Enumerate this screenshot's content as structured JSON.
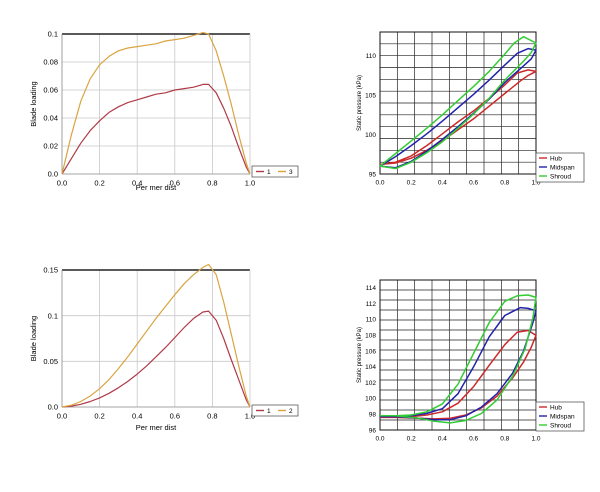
{
  "chart_data": [
    {
      "type": "line",
      "xlabel": "Per mer dist",
      "ylabel": "Blade loading",
      "xlim": [
        0,
        1.0
      ],
      "ylim": [
        0,
        0.1
      ],
      "xticks": [
        "0.0",
        "0.2",
        "0.4",
        "0.6",
        "0.8",
        "1.0"
      ],
      "yticks": [
        "0.0",
        "0.02",
        "0.04",
        "0.06",
        "0.08",
        "0.1"
      ],
      "legend_position": "bottom-right",
      "grid": true,
      "series": [
        {
          "name": "1",
          "color": "#b03a48",
          "x": [
            0,
            0.05,
            0.1,
            0.15,
            0.2,
            0.25,
            0.3,
            0.35,
            0.4,
            0.45,
            0.5,
            0.55,
            0.6,
            0.65,
            0.7,
            0.75,
            0.78,
            0.82,
            0.86,
            0.9,
            0.94,
            0.98,
            1.0
          ],
          "y": [
            0,
            0.011,
            0.022,
            0.031,
            0.038,
            0.044,
            0.048,
            0.051,
            0.053,
            0.055,
            0.057,
            0.058,
            0.06,
            0.061,
            0.062,
            0.064,
            0.064,
            0.058,
            0.047,
            0.034,
            0.019,
            0.005,
            0
          ]
        },
        {
          "name": "3",
          "color": "#d9a441",
          "x": [
            0,
            0.05,
            0.1,
            0.15,
            0.2,
            0.25,
            0.3,
            0.35,
            0.4,
            0.45,
            0.5,
            0.55,
            0.6,
            0.65,
            0.7,
            0.75,
            0.78,
            0.82,
            0.86,
            0.9,
            0.94,
            0.98,
            1.0
          ],
          "y": [
            0,
            0.028,
            0.052,
            0.068,
            0.078,
            0.084,
            0.088,
            0.09,
            0.091,
            0.092,
            0.093,
            0.095,
            0.096,
            0.097,
            0.099,
            0.101,
            0.1,
            0.088,
            0.07,
            0.05,
            0.028,
            0.008,
            0
          ]
        }
      ]
    },
    {
      "type": "line",
      "xlabel": "",
      "ylabel": "Static pressure (kPa)",
      "xlim": [
        0,
        1.0
      ],
      "ylim": [
        95,
        113
      ],
      "xticks": [
        "0.0",
        "0.2",
        "0.4",
        "0.6",
        "0.8",
        "1.0"
      ],
      "yticks": [
        "95",
        "100",
        "105",
        "110"
      ],
      "legend_position": "bottom-right",
      "grid": true,
      "series": [
        {
          "name": "Hub",
          "color": "#cc2a2a",
          "x": [
            0,
            0.1,
            0.2,
            0.3,
            0.4,
            0.5,
            0.6,
            0.7,
            0.8,
            0.88,
            0.95,
            1.0,
            0.95,
            0.9,
            0.8,
            0.7,
            0.6,
            0.5,
            0.4,
            0.3,
            0.2,
            0.1,
            0
          ],
          "y": [
            96.2,
            96.5,
            97.3,
            98.6,
            100.1,
            101.6,
            103.0,
            104.6,
            106.3,
            107.8,
            108.2,
            108.0,
            107.5,
            106.8,
            105.2,
            103.6,
            102.0,
            100.6,
            99.2,
            98.0,
            97.0,
            96.4,
            96.2
          ]
        },
        {
          "name": "Midspan",
          "color": "#2222aa",
          "x": [
            0,
            0.1,
            0.2,
            0.3,
            0.4,
            0.5,
            0.6,
            0.7,
            0.8,
            0.88,
            0.95,
            1.0,
            0.97,
            0.92,
            0.8,
            0.7,
            0.6,
            0.5,
            0.4,
            0.3,
            0.2,
            0.1,
            0
          ],
          "y": [
            96.0,
            97.2,
            98.6,
            100.1,
            101.7,
            103.4,
            105.1,
            106.9,
            108.8,
            110.3,
            110.9,
            110.7,
            109.6,
            108.7,
            106.6,
            104.5,
            102.7,
            101.0,
            99.4,
            97.9,
            96.6,
            95.8,
            96.0
          ]
        },
        {
          "name": "Shroud",
          "color": "#33cc33",
          "x": [
            0,
            0.1,
            0.2,
            0.3,
            0.4,
            0.5,
            0.6,
            0.7,
            0.8,
            0.86,
            0.92,
            1.0,
            0.97,
            0.92,
            0.8,
            0.7,
            0.6,
            0.5,
            0.4,
            0.3,
            0.2,
            0.1,
            0
          ],
          "y": [
            96.0,
            97.6,
            99.2,
            100.8,
            102.5,
            104.3,
            106.1,
            108.0,
            110.2,
            111.6,
            112.4,
            111.6,
            110.4,
            109.3,
            106.9,
            104.6,
            102.6,
            100.8,
            99.1,
            97.7,
            96.5,
            95.7,
            96.0
          ]
        }
      ]
    },
    {
      "type": "line",
      "xlabel": "Per mer dist",
      "ylabel": "Blade loading",
      "xlim": [
        0,
        1.0
      ],
      "ylim": [
        0,
        0.15
      ],
      "xticks": [
        "0.0",
        "0.2",
        "0.4",
        "0.6",
        "0.8",
        "1.0"
      ],
      "yticks": [
        "0.0",
        "0.05",
        "0.1",
        "0.15"
      ],
      "legend_position": "bottom-right",
      "grid": true,
      "series": [
        {
          "name": "1",
          "color": "#b03a48",
          "x": [
            0,
            0.05,
            0.1,
            0.15,
            0.2,
            0.25,
            0.3,
            0.35,
            0.4,
            0.45,
            0.5,
            0.55,
            0.6,
            0.65,
            0.7,
            0.75,
            0.78,
            0.82,
            0.86,
            0.9,
            0.94,
            0.98,
            1.0
          ],
          "y": [
            0,
            0.001,
            0.003,
            0.006,
            0.01,
            0.015,
            0.021,
            0.028,
            0.036,
            0.045,
            0.055,
            0.065,
            0.076,
            0.087,
            0.097,
            0.104,
            0.105,
            0.095,
            0.075,
            0.052,
            0.03,
            0.008,
            0
          ]
        },
        {
          "name": "2",
          "color": "#d9a441",
          "x": [
            0,
            0.05,
            0.1,
            0.15,
            0.2,
            0.25,
            0.3,
            0.35,
            0.4,
            0.45,
            0.5,
            0.55,
            0.6,
            0.65,
            0.7,
            0.75,
            0.78,
            0.82,
            0.86,
            0.9,
            0.94,
            0.98,
            1.0
          ],
          "y": [
            0,
            0.002,
            0.006,
            0.012,
            0.02,
            0.03,
            0.042,
            0.055,
            0.069,
            0.083,
            0.097,
            0.11,
            0.123,
            0.135,
            0.145,
            0.153,
            0.156,
            0.145,
            0.115,
            0.08,
            0.045,
            0.012,
            0
          ]
        }
      ]
    },
    {
      "type": "line",
      "xlabel": "",
      "ylabel": "Static pressure (kPa)",
      "xlim": [
        0,
        1.0
      ],
      "ylim": [
        96,
        115
      ],
      "xticks": [
        "0.0",
        "0.2",
        "0.4",
        "0.6",
        "0.8",
        "1.0"
      ],
      "yticks": [
        "96",
        "98",
        "100",
        "102",
        "104",
        "106",
        "108",
        "110",
        "112",
        "114"
      ],
      "legend_position": "bottom-right",
      "grid": true,
      "series": [
        {
          "name": "Hub",
          "color": "#cc2a2a",
          "x": [
            0,
            0.1,
            0.2,
            0.3,
            0.4,
            0.5,
            0.6,
            0.7,
            0.8,
            0.88,
            0.95,
            1.0,
            0.97,
            0.92,
            0.85,
            0.75,
            0.65,
            0.55,
            0.45,
            0.35,
            0.25,
            0.1,
            0
          ],
          "y": [
            97.6,
            97.6,
            97.7,
            97.9,
            98.3,
            99.4,
            101.5,
            104.2,
            106.8,
            108.4,
            108.6,
            108.0,
            106.5,
            104.6,
            102.6,
            100.3,
            98.8,
            97.9,
            97.5,
            97.4,
            97.5,
            97.6,
            97.6
          ]
        },
        {
          "name": "Midspan",
          "color": "#2222aa",
          "x": [
            0,
            0.1,
            0.2,
            0.3,
            0.4,
            0.5,
            0.6,
            0.7,
            0.8,
            0.9,
            0.95,
            1.0,
            0.98,
            0.92,
            0.85,
            0.75,
            0.65,
            0.55,
            0.45,
            0.35,
            0.25,
            0.1,
            0
          ],
          "y": [
            97.7,
            97.7,
            97.8,
            98.1,
            98.7,
            100.6,
            104.0,
            107.8,
            110.5,
            111.5,
            111.4,
            111.1,
            109.6,
            106.0,
            103.2,
            100.6,
            98.9,
            97.8,
            97.3,
            97.3,
            97.5,
            97.7,
            97.7
          ]
        },
        {
          "name": "Shroud",
          "color": "#33cc33",
          "x": [
            0,
            0.1,
            0.2,
            0.3,
            0.4,
            0.5,
            0.6,
            0.7,
            0.8,
            0.88,
            0.95,
            1.0,
            0.98,
            0.93,
            0.85,
            0.75,
            0.65,
            0.55,
            0.45,
            0.35,
            0.25,
            0.1,
            0
          ],
          "y": [
            97.8,
            97.8,
            97.9,
            98.3,
            99.3,
            101.8,
            105.7,
            109.6,
            112.3,
            113.0,
            113.1,
            112.8,
            110.2,
            106.3,
            102.8,
            99.8,
            98.1,
            97.2,
            96.9,
            97.1,
            97.5,
            97.8,
            97.8
          ]
        }
      ]
    }
  ]
}
